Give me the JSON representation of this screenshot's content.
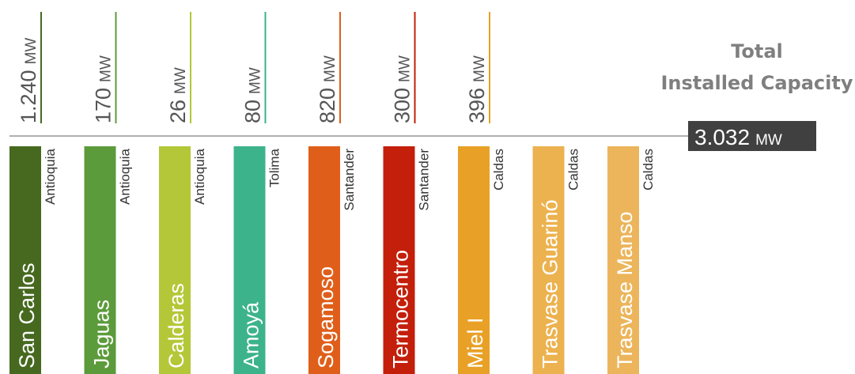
{
  "plants": [
    {
      "name": "San Carlos",
      "region": "Antioquia",
      "capacity": "1.240",
      "color": "#46691f"
    },
    {
      "name": "Jaguas",
      "region": "Antioquia",
      "capacity": "170",
      "color": "#5c9b3b"
    },
    {
      "name": "Calderas",
      "region": "Antioquia",
      "capacity": "26",
      "color": "#b4c738"
    },
    {
      "name": "Amoyá",
      "region": "Tolima",
      "capacity": "80",
      "color": "#3cb38b"
    },
    {
      "name": "Sogamoso",
      "region": "Santander",
      "capacity": "820",
      "color": "#df5f1a"
    },
    {
      "name": "Termocentro",
      "region": "Santander",
      "capacity": "300",
      "color": "#c31f0b"
    },
    {
      "name": "Miel I",
      "region": "Caldas",
      "capacity": "396",
      "color": "#e8a126"
    },
    {
      "name": "Trasvase Guarinó",
      "region": "Caldas",
      "color": "#ecb24f"
    },
    {
      "name": "Trasvase Manso",
      "region": "Caldas",
      "color": "#ecb55b"
    }
  ],
  "unit": "MW",
  "total": {
    "title_line1": "Total",
    "title_line2": "Installed Capacity",
    "value": "3.032"
  }
}
